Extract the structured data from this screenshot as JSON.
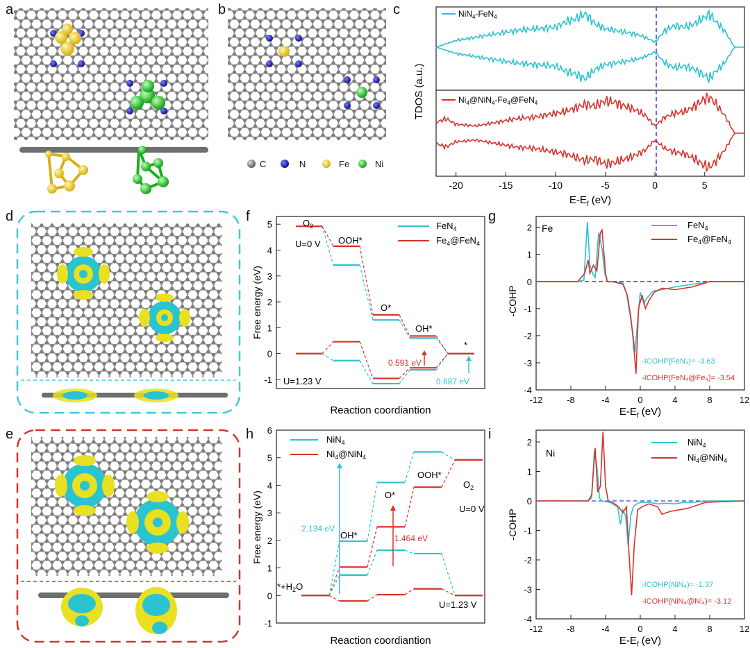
{
  "panel_labels": [
    "a",
    "b",
    "c",
    "d",
    "e",
    "f",
    "g",
    "h",
    "i"
  ],
  "legend_atoms": {
    "items": [
      "C",
      "N",
      "Fe",
      "Ni"
    ],
    "colors": {
      "C": "#8c8c8c",
      "N": "#1a1acc",
      "Fe": "#e8c21a",
      "Ni": "#1ec81e"
    }
  },
  "colors": {
    "cyan": "#29c4cf",
    "red": "#d8322c",
    "yellow": "#e8e020",
    "dash_cyan": "#3fc9d6",
    "dash_red": "#d8322c",
    "fermi": "#3a3ad0"
  },
  "panel_c": {
    "ylabel": "TDOS (a.u.)",
    "xlabel": "E-E",
    "xlabel_sub": "f",
    "xlabel_unit": " (eV)",
    "ticks": [
      "-20",
      "-15",
      "-10",
      "-5",
      "0",
      "5"
    ],
    "legend_top_parts": [
      "NiN",
      "4",
      "-FeN",
      "4"
    ],
    "legend_bottom_parts": [
      "Ni",
      "4",
      "@NiN",
      "4",
      "-Fe",
      "4",
      "@FeN",
      "4"
    ]
  },
  "panel_f": {
    "ylabel": "Free energy (eV)",
    "xlabel": "Reaction coordiantion",
    "yticks": [
      "5",
      "4",
      "3",
      "2",
      "1",
      "0",
      "-1"
    ],
    "legend1": [
      "FeN",
      "4"
    ],
    "legend2": [
      "Fe",
      "4",
      "@FeN",
      "4"
    ],
    "lbl_o2": [
      "O",
      "2"
    ],
    "lbl_u0": "U=0 V",
    "lbl_ooh": "OOH*",
    "lbl_o": "O*",
    "lbl_oh": "OH*",
    "lbl_star": "*",
    "lbl_u123": "U=1.23 V",
    "val_red": "0.591 eV",
    "val_cyan": "0.687 eV"
  },
  "panel_h": {
    "ylabel": "Free energy (eV)",
    "xlabel": "Reaction coordiantion",
    "yticks": [
      "6",
      "5",
      "4",
      "3",
      "2",
      "1",
      "0",
      "-1"
    ],
    "legend1": [
      "NiN",
      "4"
    ],
    "legend2": [
      "Ni",
      "4",
      "@NiN",
      "4"
    ],
    "lbl_start": [
      "*+H",
      "2",
      "O"
    ],
    "lbl_oh": "OH*",
    "lbl_o": "O*",
    "lbl_ooh": "OOH*",
    "lbl_o2": [
      "O",
      "2"
    ],
    "lbl_u0": "U=0 V",
    "lbl_u123": "U=1.23 V",
    "val_cyan": "2.134 eV",
    "val_red": "1.464 eV"
  },
  "panel_g": {
    "element": "Fe",
    "ylabel": "-COHP",
    "xlabel": "E-E",
    "xlabel_sub": "f",
    "xlabel_unit": " (eV)",
    "xticks": [
      "-12",
      "-8",
      "-4",
      "0",
      "4",
      "8",
      "12"
    ],
    "yticks": [
      "2",
      "1",
      "0",
      "-1",
      "-2",
      "-3",
      "-4"
    ],
    "legend1": [
      "FeN",
      "4"
    ],
    "legend2": [
      "Fe",
      "4",
      "@FeN",
      "4"
    ],
    "icohp1": "-ICOHP(FeN₄)= -3.63",
    "icohp2": "-ICOHP(FeN₄@Fe₄)= -3.54"
  },
  "panel_i": {
    "element": "Ni",
    "ylabel": "-COHP",
    "xlabel": "E-E",
    "xlabel_sub": "f",
    "xlabel_unit": " (eV)",
    "xticks": [
      "-12",
      "-8",
      "-4",
      "0",
      "4",
      "8",
      "12"
    ],
    "yticks": [
      "2",
      "1",
      "0",
      "-1",
      "-2",
      "-3",
      "-4"
    ],
    "legend1": [
      "NiN",
      "4"
    ],
    "legend2": [
      "Ni",
      "4",
      "@NiN",
      "4"
    ],
    "icohp1": "-ICOHP(NiN₄)= -1.37",
    "icohp2": "-ICOHP(NiN₄@Ni₄)= -3.12"
  },
  "chart_data": [
    {
      "type": "line",
      "panel": "f",
      "ylabel": "Free energy (eV)",
      "xlabel": "Reaction coordiantion",
      "ylim": [
        -1.3,
        5.3
      ],
      "categories": [
        "O2",
        "OOH*",
        "O*",
        "OH*",
        "*"
      ],
      "series": [
        {
          "name": "FeN4 (U=0 V)",
          "values": [
            4.92,
            3.42,
            1.3,
            0.6,
            0.0
          ]
        },
        {
          "name": "Fe4@FeN4 (U=0 V)",
          "values": [
            4.92,
            4.15,
            1.5,
            0.68,
            0.0
          ]
        },
        {
          "name": "FeN4 (U=1.23 V)",
          "values": [
            0.0,
            -0.27,
            -1.16,
            -0.63,
            0.0
          ]
        },
        {
          "name": "Fe4@FeN4 (U=1.23 V)",
          "values": [
            0.0,
            0.46,
            -0.96,
            -0.55,
            0.0
          ]
        }
      ]
    },
    {
      "type": "line",
      "panel": "h",
      "ylabel": "Free energy (eV)",
      "xlabel": "Reaction coordiantion",
      "ylim": [
        -1,
        6
      ],
      "categories": [
        "*+H2O",
        "OH*",
        "O*",
        "OOH*",
        "O2"
      ],
      "series": [
        {
          "name": "NiN4 (U=0 V)",
          "values": [
            0.0,
            1.97,
            4.1,
            5.21,
            4.92
          ]
        },
        {
          "name": "Ni4@NiN4 (U=0 V)",
          "values": [
            0.0,
            1.03,
            2.49,
            3.93,
            4.92
          ]
        },
        {
          "name": "NiN4 (U=1.23 V)",
          "values": [
            0.0,
            0.74,
            1.64,
            1.52,
            0.0
          ]
        },
        {
          "name": "Ni4@NiN4 (U=1.23 V)",
          "values": [
            0.0,
            -0.2,
            0.03,
            0.24,
            0.0
          ]
        }
      ]
    },
    {
      "type": "line",
      "panel": "g",
      "ylabel": "-COHP",
      "xlabel": "E-Ef (eV)",
      "xlim": [
        -12,
        12
      ],
      "ylim": [
        -4,
        2.4
      ],
      "series": [
        {
          "name": "FeN4",
          "x": [
            -12,
            -7.2,
            -6.5,
            -6.1,
            -5.8,
            -5.5,
            -5.2,
            -4.8,
            -4.4,
            -4.1,
            -3.8,
            -3,
            -2,
            -1.6,
            -1.2,
            -0.9,
            -0.6,
            -0.3,
            0,
            0.4,
            0.8,
            1.5,
            2.5,
            4,
            6,
            7.2,
            8,
            12
          ],
          "y": [
            0,
            0,
            0.05,
            2.2,
            0.6,
            0.3,
            0.15,
            1.8,
            1.2,
            0.3,
            0,
            -0.02,
            -0.05,
            -0.4,
            -1.2,
            -1.8,
            -2.6,
            -1.4,
            -0.4,
            -0.8,
            -0.6,
            -0.35,
            -0.3,
            -0.2,
            -0.1,
            -0.05,
            0,
            0
          ]
        },
        {
          "name": "Fe4@FeN4",
          "x": [
            -12,
            -7.2,
            -6.4,
            -6.0,
            -5.8,
            -5.4,
            -5.0,
            -4.6,
            -4.4,
            -4.0,
            -3.8,
            -3,
            -2,
            -1.5,
            -1.1,
            -0.8,
            -0.5,
            -0.2,
            0.2,
            0.6,
            1,
            1.6,
            2.5,
            4,
            6,
            7,
            8,
            12
          ],
          "y": [
            0,
            0,
            0.3,
            0.8,
            0.3,
            0.6,
            0.4,
            1.8,
            1.9,
            0.3,
            0,
            -0.02,
            -0.1,
            -0.5,
            -1.3,
            -2.2,
            -3.4,
            -1.0,
            -0.5,
            -1.0,
            -0.7,
            -0.4,
            -0.25,
            -0.3,
            -0.2,
            -0.1,
            0,
            0
          ]
        }
      ]
    },
    {
      "type": "line",
      "panel": "i",
      "ylabel": "-COHP",
      "xlabel": "E-Ef (eV)",
      "xlim": [
        -12,
        12
      ],
      "ylim": [
        -4,
        2.4
      ],
      "series": [
        {
          "name": "NiN4",
          "x": [
            -12,
            -6,
            -5.6,
            -5.3,
            -5.0,
            -4.7,
            -4.4,
            -3.5,
            -2.6,
            -2.3,
            -2.0,
            -1.7,
            -1.4,
            -1.1,
            -0.8,
            -0.4,
            0,
            1,
            2,
            3,
            4,
            5,
            6,
            7,
            8,
            12
          ],
          "y": [
            0,
            0,
            0.1,
            1.7,
            1.2,
            0.1,
            0,
            -0.05,
            -0.2,
            -0.8,
            -0.3,
            -0.5,
            -1.5,
            -0.5,
            -0.2,
            -0.1,
            -0.05,
            -0.05,
            -0.1,
            -0.08,
            -0.1,
            -0.05,
            -0.05,
            -0.02,
            0,
            0
          ]
        },
        {
          "name": "Ni4@NiN4",
          "x": [
            -12,
            -6,
            -5.6,
            -5.2,
            -4.9,
            -4.6,
            -4.3,
            -4.0,
            -3.7,
            -3.2,
            -2.5,
            -2.0,
            -1.6,
            -1.3,
            -1.0,
            -0.7,
            -0.3,
            0.2,
            1,
            2,
            2.5,
            3.5,
            4.5,
            5.5,
            6.5,
            7.5,
            12
          ],
          "y": [
            0,
            0,
            0.2,
            1.8,
            0.3,
            0.5,
            2.35,
            0.5,
            0,
            -0.05,
            -0.2,
            -0.4,
            -0.2,
            -1.8,
            -3.2,
            -1.5,
            -0.3,
            -0.2,
            -0.1,
            -0.2,
            -0.45,
            -0.35,
            -0.3,
            -0.25,
            -0.15,
            -0.05,
            0
          ]
        }
      ]
    },
    {
      "type": "line",
      "panel": "c",
      "ylabel": "TDOS (a.u.)",
      "xlabel": "E-Ef (eV)",
      "xlim": [
        -22,
        9
      ],
      "note_series_shape": "spin-up above baseline, spin-down mirrored below",
      "series": [
        {
          "name": "NiN4-FeN4",
          "x": [
            -22,
            -20,
            -18,
            -16,
            -14,
            -12,
            -10,
            -9,
            -8,
            -7,
            -6,
            -5,
            -4,
            -3,
            -2,
            -1,
            0,
            1,
            2,
            3,
            4,
            5,
            5.5,
            6,
            7,
            8,
            9
          ],
          "y": [
            0,
            0.2,
            0.3,
            0.4,
            0.5,
            0.55,
            0.6,
            0.75,
            0.85,
            1.0,
            0.7,
            0.55,
            0.5,
            0.45,
            0.4,
            0.3,
            0.15,
            0.5,
            0.65,
            0.6,
            0.7,
            0.9,
            1.0,
            0.8,
            0.5,
            0,
            0
          ]
        },
        {
          "name": "Ni4@NiN4-Fe4@FeN4",
          "x": [
            -22,
            -21,
            -20,
            -18,
            -16,
            -14,
            -12,
            -10,
            -9,
            -8,
            -7,
            -6,
            -5,
            -4,
            -3,
            -2,
            -1,
            0,
            1,
            2,
            3,
            4,
            5,
            5.5,
            6,
            7,
            8,
            9
          ],
          "y": [
            0.3,
            0.4,
            0.25,
            0.2,
            0.3,
            0.4,
            0.45,
            0.55,
            0.6,
            0.7,
            0.8,
            0.75,
            0.9,
            0.85,
            0.75,
            0.65,
            0.5,
            0.2,
            0.45,
            0.55,
            0.6,
            0.75,
            0.95,
            1.0,
            0.85,
            0.5,
            0,
            0
          ]
        }
      ]
    }
  ]
}
